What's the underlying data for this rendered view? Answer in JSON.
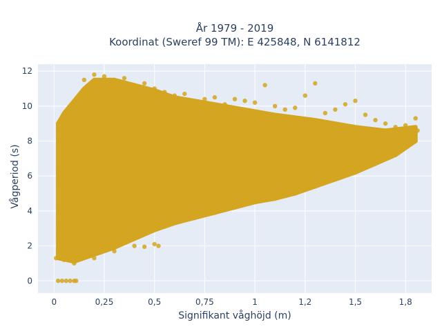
{
  "chart_data": {
    "type": "scatter",
    "title_lines": [
      "År 1979 - 2019",
      "Koordinat (Sweref 99 TM): E 425848, N 6141812"
    ],
    "xlabel": "Signifikant våghöjd (m)",
    "ylabel": "Vågperiod (s)",
    "xlim": [
      -0.08,
      1.88
    ],
    "ylim": [
      -0.7,
      12.4
    ],
    "x_ticks": [
      0,
      0.25,
      0.5,
      0.75,
      1,
      1.25,
      1.5,
      1.75
    ],
    "x_tick_labels": [
      "0",
      "0,25",
      "0,5",
      "0,75",
      "1",
      "1,2",
      "1,5",
      "1,8"
    ],
    "y_ticks": [
      0,
      2,
      4,
      6,
      8,
      10,
      12
    ],
    "y_tick_labels": [
      "0",
      "2",
      "4",
      "6",
      "8",
      "10",
      "12"
    ],
    "grid": true,
    "colors": {
      "marker": "#d4a521",
      "plot_background": "#e5ecf6",
      "grid": "#ffffff",
      "text": "#2a3f5f"
    },
    "series": [
      {
        "points": [
          [
            0.02,
            0
          ],
          [
            0.04,
            0
          ],
          [
            0.06,
            0
          ],
          [
            0.08,
            0
          ],
          [
            0.1,
            0
          ],
          [
            0.11,
            0
          ],
          [
            0.01,
            1.3
          ],
          [
            0.02,
            1.8
          ],
          [
            0.03,
            2.5
          ],
          [
            0.02,
            3.2
          ],
          [
            0.03,
            4.0
          ],
          [
            0.02,
            5.6
          ],
          [
            0.03,
            6.4
          ],
          [
            0.02,
            9.0
          ],
          [
            0.04,
            8.6
          ],
          [
            0.05,
            1.2
          ],
          [
            0.06,
            2.2
          ],
          [
            0.07,
            3.5
          ],
          [
            0.08,
            5.5
          ],
          [
            0.09,
            7.5
          ],
          [
            0.1,
            9.7
          ],
          [
            0.12,
            10.5
          ],
          [
            0.15,
            11.5
          ],
          [
            0.2,
            11.8
          ],
          [
            0.25,
            11.7
          ],
          [
            0.3,
            11.5
          ],
          [
            0.35,
            11.6
          ],
          [
            0.4,
            11.2
          ],
          [
            0.45,
            11.3
          ],
          [
            0.5,
            11.0
          ],
          [
            0.55,
            10.8
          ],
          [
            0.6,
            10.6
          ],
          [
            0.65,
            10.7
          ],
          [
            0.7,
            10.2
          ],
          [
            0.75,
            10.4
          ],
          [
            0.8,
            10.5
          ],
          [
            0.85,
            10.1
          ],
          [
            0.9,
            10.4
          ],
          [
            0.95,
            10.3
          ],
          [
            1.0,
            10.2
          ],
          [
            1.05,
            11.2
          ],
          [
            1.1,
            10.0
          ],
          [
            1.15,
            9.8
          ],
          [
            1.2,
            9.9
          ],
          [
            1.25,
            10.6
          ],
          [
            1.3,
            11.3
          ],
          [
            1.35,
            9.6
          ],
          [
            1.4,
            9.8
          ],
          [
            1.45,
            10.1
          ],
          [
            1.5,
            10.3
          ],
          [
            1.55,
            9.5
          ],
          [
            1.6,
            9.2
          ],
          [
            1.65,
            9.0
          ],
          [
            1.7,
            8.8
          ],
          [
            1.75,
            8.9
          ],
          [
            1.8,
            9.3
          ],
          [
            1.81,
            8.6
          ],
          [
            0.1,
            1.0
          ],
          [
            0.2,
            1.3
          ],
          [
            0.3,
            1.7
          ],
          [
            0.4,
            2.0
          ],
          [
            0.45,
            1.95
          ],
          [
            0.5,
            2.1
          ],
          [
            0.52,
            2.0
          ],
          [
            0.6,
            3.3
          ],
          [
            0.7,
            3.6
          ],
          [
            0.8,
            3.9
          ],
          [
            0.9,
            4.2
          ],
          [
            1.0,
            4.5
          ],
          [
            1.1,
            4.7
          ],
          [
            1.2,
            5.0
          ],
          [
            1.3,
            5.4
          ],
          [
            1.4,
            5.8
          ],
          [
            1.5,
            6.2
          ],
          [
            1.6,
            6.7
          ],
          [
            1.7,
            7.2
          ],
          [
            1.8,
            8.0
          ],
          [
            0.5,
            6.0
          ],
          [
            0.75,
            6.5
          ],
          [
            1.0,
            6.0
          ],
          [
            1.25,
            6.8
          ],
          [
            1.5,
            7.3
          ],
          [
            1.2,
            8.5
          ],
          [
            0.9,
            9.0
          ],
          [
            0.6,
            9.5
          ]
        ]
      }
    ]
  }
}
